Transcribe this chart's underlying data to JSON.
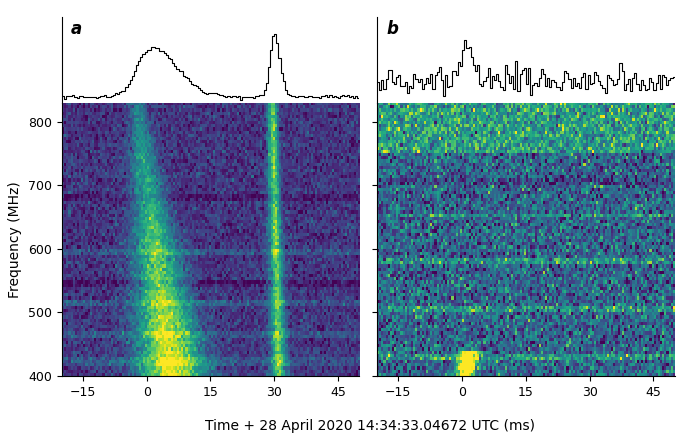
{
  "xlabel": "Time + 28 April 2020 14:34:33.04672 UTC (ms)",
  "ylabel": "Frequency (MHz)",
  "freq_min": 400,
  "freq_max": 830,
  "time_min": -20,
  "time_max": 50,
  "time_ticks": [
    -15,
    0,
    15,
    30,
    45
  ],
  "freq_ticks": [
    400,
    500,
    600,
    700,
    800
  ],
  "panel_a_label": "a",
  "panel_b_label": "b",
  "background_color": "#ffffff",
  "seed_a": 7,
  "seed_b": 99,
  "n_time": 140,
  "n_freq": 86,
  "panel_label_fontsize": 12,
  "axis_label_fontsize": 10,
  "tick_fontsize": 9
}
